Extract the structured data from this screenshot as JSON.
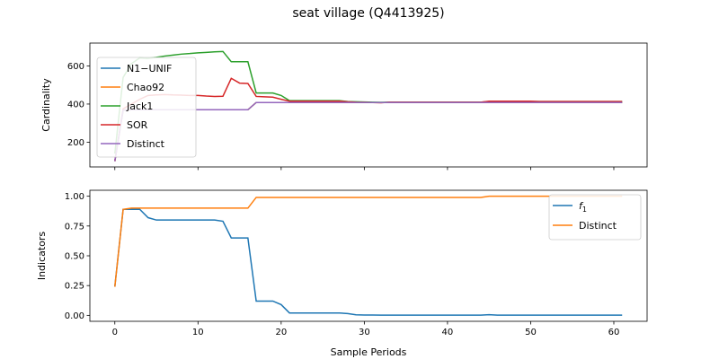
{
  "figure": {
    "title": "seat village (Q4413925)",
    "xlabel": "Sample Periods"
  },
  "chart_data": [
    {
      "type": "line",
      "ylabel": "Cardinality",
      "xlim": [
        -3,
        64
      ],
      "ylim": [
        70,
        720
      ],
      "xticks": [
        0,
        10,
        20,
        30,
        40,
        50,
        60
      ],
      "yticks": [
        200,
        400,
        600
      ],
      "legend_position": "left",
      "x": [
        0,
        1,
        2,
        3,
        4,
        5,
        6,
        7,
        8,
        9,
        10,
        11,
        12,
        13,
        14,
        15,
        16,
        17,
        18,
        19,
        20,
        21,
        22,
        23,
        24,
        25,
        26,
        27,
        28,
        29,
        30,
        31,
        32,
        33,
        34,
        35,
        36,
        37,
        38,
        39,
        40,
        41,
        42,
        43,
        44,
        45,
        46,
        47,
        48,
        49,
        50,
        51,
        52,
        53,
        54,
        55,
        56,
        57,
        58,
        59,
        60,
        61
      ],
      "series": [
        {
          "name": "N1−UNIF",
          "color": "#1f77b4",
          "values": [
            100,
            368,
            370,
            370,
            370,
            370,
            370,
            370,
            370,
            370,
            370,
            370,
            370,
            370,
            370,
            370,
            370,
            408,
            408,
            408,
            408,
            408,
            408,
            408,
            408,
            408,
            408,
            408,
            408,
            408,
            408,
            408,
            408,
            408,
            408,
            408,
            408,
            408,
            408,
            408,
            408,
            408,
            408,
            408,
            408,
            408,
            408,
            408,
            408,
            408,
            408,
            408,
            408,
            408,
            408,
            408,
            408,
            408,
            408,
            408,
            408,
            408
          ]
        },
        {
          "name": "Chao92",
          "color": "#ff7f0e",
          "values": [
            100,
            368,
            370,
            370,
            370,
            370,
            370,
            370,
            370,
            370,
            370,
            370,
            370,
            370,
            370,
            370,
            370,
            408,
            408,
            408,
            408,
            408,
            408,
            408,
            408,
            408,
            408,
            408,
            408,
            408,
            408,
            408,
            408,
            408,
            408,
            408,
            408,
            408,
            408,
            408,
            408,
            408,
            408,
            408,
            408,
            408,
            408,
            408,
            408,
            408,
            408,
            408,
            408,
            408,
            408,
            408,
            408,
            408,
            408,
            408,
            408,
            408
          ]
        },
        {
          "name": "Jack1",
          "color": "#2ca02c",
          "values": [
            140,
            540,
            612,
            642,
            640,
            645,
            652,
            657,
            662,
            665,
            669,
            671,
            674,
            676,
            622,
            622,
            622,
            458,
            458,
            458,
            445,
            418,
            418,
            418,
            418,
            418,
            418,
            418,
            413,
            412,
            411,
            410,
            409,
            410,
            410,
            410,
            410,
            410,
            410,
            410,
            410,
            410,
            410,
            410,
            410,
            413,
            413,
            413,
            413,
            413,
            413,
            413,
            413,
            413,
            413,
            413,
            413,
            413,
            413,
            413,
            413,
            413
          ]
        },
        {
          "name": "SOR",
          "color": "#d62728",
          "values": [
            100,
            375,
            400,
            425,
            445,
            448,
            450,
            448,
            447,
            445,
            445,
            442,
            440,
            441,
            535,
            510,
            508,
            440,
            438,
            436,
            425,
            415,
            415,
            415,
            415,
            415,
            415,
            415,
            412,
            410,
            409,
            408,
            407,
            410,
            410,
            410,
            410,
            410,
            410,
            410,
            410,
            410,
            410,
            410,
            410,
            415,
            415,
            415,
            415,
            415,
            415,
            413,
            413,
            413,
            413,
            413,
            413,
            413,
            413,
            413,
            413,
            413
          ]
        },
        {
          "name": "Distinct",
          "color": "#9467bd",
          "values": [
            100,
            368,
            370,
            370,
            370,
            370,
            370,
            370,
            370,
            370,
            370,
            370,
            370,
            370,
            370,
            370,
            370,
            408,
            408,
            408,
            408,
            408,
            408,
            408,
            408,
            408,
            408,
            408,
            408,
            408,
            408,
            408,
            408,
            408,
            408,
            408,
            408,
            408,
            408,
            408,
            408,
            408,
            408,
            408,
            408,
            408,
            408,
            408,
            408,
            408,
            408,
            408,
            408,
            408,
            408,
            408,
            408,
            408,
            408,
            408,
            408,
            408
          ]
        }
      ]
    },
    {
      "type": "line",
      "ylabel": "Indicators",
      "xlim": [
        -3,
        64
      ],
      "ylim": [
        -0.05,
        1.05
      ],
      "xticks": [
        0,
        10,
        20,
        30,
        40,
        50,
        60
      ],
      "yticks": [
        0.0,
        0.25,
        0.5,
        0.75,
        1.0
      ],
      "yticks_text": [
        "0.00",
        "0.25",
        "0.50",
        "0.75",
        "1.00"
      ],
      "legend_position": "upper right",
      "x": [
        0,
        1,
        2,
        3,
        4,
        5,
        6,
        7,
        8,
        9,
        10,
        11,
        12,
        13,
        14,
        15,
        16,
        17,
        18,
        19,
        20,
        21,
        22,
        23,
        24,
        25,
        26,
        27,
        28,
        29,
        30,
        31,
        32,
        33,
        34,
        35,
        36,
        37,
        38,
        39,
        40,
        41,
        42,
        43,
        44,
        45,
        46,
        47,
        48,
        49,
        50,
        51,
        52,
        53,
        54,
        55,
        56,
        57,
        58,
        59,
        60,
        61
      ],
      "series": [
        {
          "name": "f",
          "subscript": "1",
          "color": "#1f77b4",
          "values": [
            0.24,
            0.89,
            0.89,
            0.89,
            0.82,
            0.8,
            0.8,
            0.8,
            0.8,
            0.8,
            0.8,
            0.8,
            0.8,
            0.79,
            0.65,
            0.65,
            0.65,
            0.12,
            0.12,
            0.12,
            0.09,
            0.02,
            0.02,
            0.02,
            0.02,
            0.02,
            0.02,
            0.02,
            0.015,
            0.005,
            0.003,
            0.003,
            0.002,
            0.002,
            0.002,
            0.002,
            0.002,
            0.002,
            0.002,
            0.002,
            0.002,
            0.002,
            0.002,
            0.002,
            0.002,
            0.006,
            0.002,
            0.002,
            0.002,
            0.002,
            0.002,
            0.002,
            0.002,
            0.002,
            0.002,
            0.002,
            0.002,
            0.002,
            0.002,
            0.002,
            0.002,
            0.002
          ]
        },
        {
          "name": "Distinct",
          "color": "#ff7f0e",
          "values": [
            0.24,
            0.89,
            0.9,
            0.9,
            0.9,
            0.9,
            0.9,
            0.9,
            0.9,
            0.9,
            0.9,
            0.9,
            0.9,
            0.9,
            0.9,
            0.9,
            0.9,
            0.99,
            0.99,
            0.99,
            0.99,
            0.99,
            0.99,
            0.99,
            0.99,
            0.99,
            0.99,
            0.99,
            0.99,
            0.99,
            0.99,
            0.99,
            0.99,
            0.99,
            0.99,
            0.99,
            0.99,
            0.99,
            0.99,
            0.99,
            0.99,
            0.99,
            0.99,
            0.99,
            0.99,
            1.0,
            1.0,
            1.0,
            1.0,
            1.0,
            1.0,
            1.0,
            1.0,
            1.0,
            1.0,
            1.0,
            1.0,
            1.0,
            1.0,
            1.0,
            1.0,
            1.0
          ]
        }
      ]
    }
  ]
}
